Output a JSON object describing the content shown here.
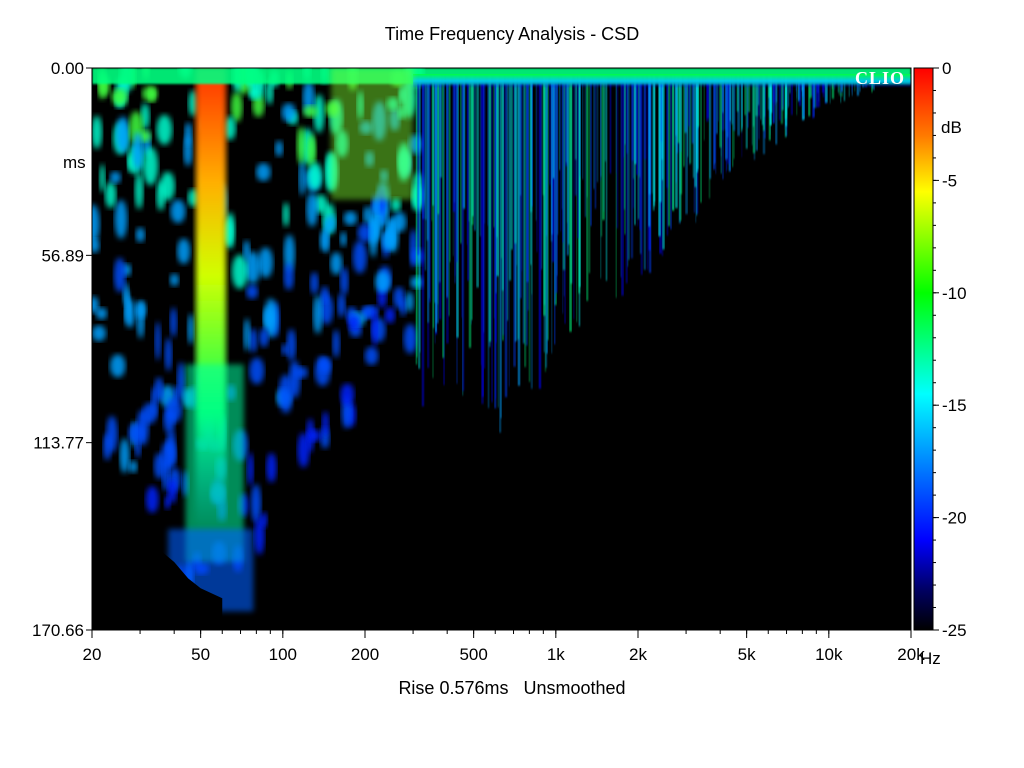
{
  "chart_data": {
    "type": "heatmap",
    "title": "Time Frequency Analysis - CSD",
    "subtitle": "Rise 0.576ms   Unsmoothed",
    "xlabel": "Hz",
    "ylabel": "ms",
    "x_scale": "log",
    "xlim": [
      20,
      20000
    ],
    "ylim": [
      0.0,
      170.66
    ],
    "x_ticks": [
      {
        "value": 20,
        "label": "20"
      },
      {
        "value": 50,
        "label": "50"
      },
      {
        "value": 100,
        "label": "100"
      },
      {
        "value": 200,
        "label": "200"
      },
      {
        "value": 500,
        "label": "500"
      },
      {
        "value": 1000,
        "label": "1k"
      },
      {
        "value": 2000,
        "label": "2k"
      },
      {
        "value": 5000,
        "label": "5k"
      },
      {
        "value": 10000,
        "label": "10k"
      },
      {
        "value": 20000,
        "label": "20k"
      }
    ],
    "y_ticks": [
      {
        "value": 0.0,
        "label": "0.00"
      },
      {
        "value": 56.89,
        "label": "56.89"
      },
      {
        "value": 113.77,
        "label": "113.77"
      },
      {
        "value": 170.66,
        "label": "170.66"
      }
    ],
    "colorbar": {
      "label": "dB",
      "range": [
        -25,
        0
      ],
      "ticks": [
        {
          "value": 0,
          "label": "0"
        },
        {
          "value": -5,
          "label": "-5"
        },
        {
          "value": -10,
          "label": "-10"
        },
        {
          "value": -15,
          "label": "-15"
        },
        {
          "value": -20,
          "label": "-20"
        },
        {
          "value": -25,
          "label": "-25"
        }
      ]
    },
    "decay_ms_by_frequency": [
      {
        "hz": 25,
        "ms": 150
      },
      {
        "hz": 40,
        "ms": 160
      },
      {
        "hz": 55,
        "ms": 165
      },
      {
        "hz": 70,
        "ms": 155
      },
      {
        "hz": 100,
        "ms": 130
      },
      {
        "hz": 150,
        "ms": 115
      },
      {
        "hz": 200,
        "ms": 100
      },
      {
        "hz": 280,
        "ms": 90
      },
      {
        "hz": 400,
        "ms": 80
      },
      {
        "hz": 700,
        "ms": 100
      },
      {
        "hz": 1000,
        "ms": 70
      },
      {
        "hz": 2000,
        "ms": 55
      },
      {
        "hz": 5000,
        "ms": 25
      },
      {
        "hz": 10000,
        "ms": 10
      },
      {
        "hz": 20000,
        "ms": 3
      }
    ],
    "colors": {
      "background": "#000000",
      "scale": [
        "#ff0000",
        "#ff8000",
        "#ffff00",
        "#00ff00",
        "#00ffff",
        "#0080ff",
        "#0000ff",
        "#000030",
        "#000000"
      ]
    },
    "logo_text": "CLIO"
  }
}
